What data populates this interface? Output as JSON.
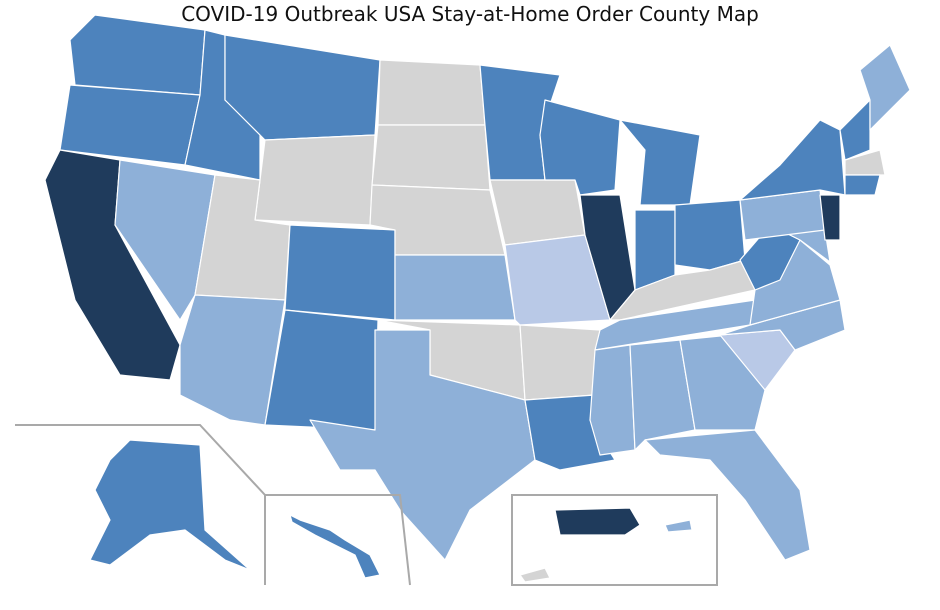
{
  "title": "COVID-19 Outbreak USA Stay-at-Home Order County Map"
}
